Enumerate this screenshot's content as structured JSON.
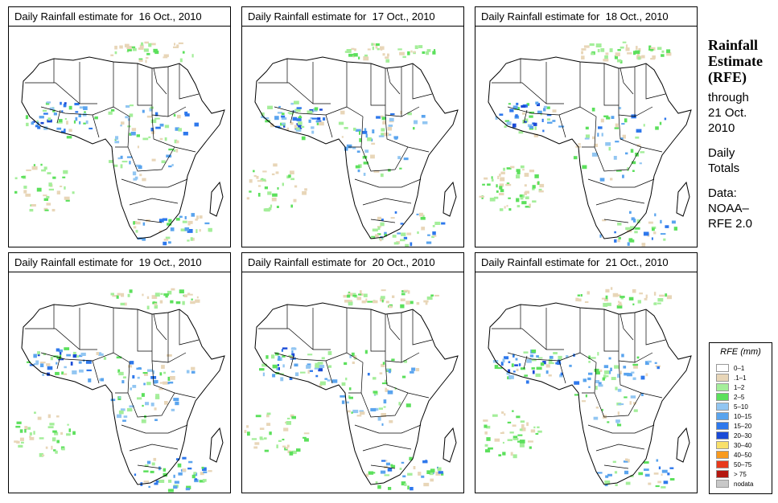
{
  "panels": [
    {
      "title": "Daily Rainfall estimate for  16 Oct., 2010"
    },
    {
      "title": "Daily Rainfall estimate for  17 Oct., 2010"
    },
    {
      "title": "Daily Rainfall estimate for  18 Oct., 2010"
    },
    {
      "title": "Daily Rainfall estimate for  19 Oct., 2010"
    },
    {
      "title": "Daily Rainfall estimate for  20 Oct., 2010"
    },
    {
      "title": "Daily Rainfall estimate for  21 Oct., 2010"
    }
  ],
  "side": {
    "title_line1": "Rainfall",
    "title_line2": "Estimate",
    "title_line3": "(RFE)",
    "through_label": "through",
    "through_date_line1": "21 Oct.",
    "through_date_line2": "2010",
    "totals_line1": "Daily",
    "totals_line2": "Totals",
    "data_label": "Data:",
    "data_line1": "NOAA–",
    "data_line2": "RFE 2.0"
  },
  "legend": {
    "title": "RFE (mm)",
    "items": [
      {
        "label": "0–1",
        "color": "#ffffff"
      },
      {
        "label": ".1–1",
        "color": "#e8d6b8"
      },
      {
        "label": "1–2",
        "color": "#a4ee9a"
      },
      {
        "label": "2–5",
        "color": "#5ce05c"
      },
      {
        "label": "5–10",
        "color": "#92c6f2"
      },
      {
        "label": "10–15",
        "color": "#5aa4ee"
      },
      {
        "label": "15–20",
        "color": "#2e78ec"
      },
      {
        "label": "20–30",
        "color": "#1a4ad6"
      },
      {
        "label": "30–40",
        "color": "#f8e06a"
      },
      {
        "label": "40–50",
        "color": "#f89a1e"
      },
      {
        "label": "50–75",
        "color": "#e83a1c"
      },
      {
        "label": "> 75",
        "color": "#b41810"
      },
      {
        "label": "nodata",
        "color": "#c8c8c8"
      }
    ]
  }
}
